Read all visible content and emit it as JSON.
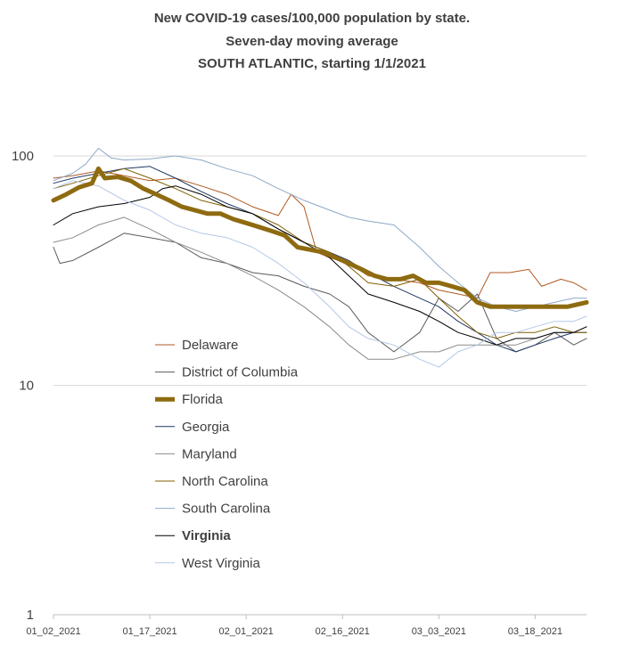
{
  "chart_data": {
    "type": "line",
    "title": [
      "New COVID-19 cases/100,000 population by state.",
      "Seven-day moving average",
      "SOUTH ATLANTIC, starting 1/1/2021"
    ],
    "xlabel": "",
    "ylabel": "",
    "y_scale": "log",
    "ylim": [
      1,
      100
    ],
    "y_ticks": [
      {
        "value": 100,
        "label": "100"
      },
      {
        "value": 10,
        "label": "10"
      },
      {
        "value": 1,
        "label": "1"
      }
    ],
    "x_start": "2021-01-02",
    "x_end": "2021-03-26",
    "x_ticks": [
      {
        "date": "2021-01-02",
        "label": "01_02_2021"
      },
      {
        "date": "2021-01-17",
        "label": "01_17_2021"
      },
      {
        "date": "2021-02-01",
        "label": "02_01_2021"
      },
      {
        "date": "2021-02-16",
        "label": "02_16_2021"
      },
      {
        "date": "2021-03-03",
        "label": "03_03_2021"
      },
      {
        "date": "2021-03-18",
        "label": "03_18_2021"
      }
    ],
    "gridlines": "horizontal",
    "legend_position": "inside-lower-left",
    "series": [
      {
        "name": "Delaware",
        "color": "#b05a22",
        "width": 1,
        "bold": false,
        "points": [
          [
            "2021-01-02",
            80
          ],
          [
            "2021-01-05",
            82
          ],
          [
            "2021-01-09",
            86
          ],
          [
            "2021-01-13",
            82
          ],
          [
            "2021-01-17",
            78
          ],
          [
            "2021-01-21",
            80
          ],
          [
            "2021-01-25",
            74
          ],
          [
            "2021-01-29",
            68
          ],
          [
            "2021-02-02",
            60
          ],
          [
            "2021-02-06",
            55
          ],
          [
            "2021-02-08",
            68
          ],
          [
            "2021-02-10",
            60
          ],
          [
            "2021-02-12",
            38
          ],
          [
            "2021-02-14",
            36
          ],
          [
            "2021-02-17",
            34
          ],
          [
            "2021-02-20",
            30
          ],
          [
            "2021-02-24",
            29
          ],
          [
            "2021-02-28",
            28
          ],
          [
            "2021-03-03",
            26
          ],
          [
            "2021-03-06",
            25
          ],
          [
            "2021-03-09",
            24
          ],
          [
            "2021-03-11",
            31
          ],
          [
            "2021-03-14",
            31
          ],
          [
            "2021-03-17",
            32
          ],
          [
            "2021-03-19",
            27
          ],
          [
            "2021-03-22",
            29
          ],
          [
            "2021-03-24",
            28
          ],
          [
            "2021-03-26",
            26
          ]
        ]
      },
      {
        "name": "District of Columbia",
        "color": "#5b5b5b",
        "width": 1,
        "bold": false,
        "points": [
          [
            "2021-01-02",
            40
          ],
          [
            "2021-01-03",
            34
          ],
          [
            "2021-01-05",
            35
          ],
          [
            "2021-01-09",
            40
          ],
          [
            "2021-01-13",
            46
          ],
          [
            "2021-01-17",
            44
          ],
          [
            "2021-01-21",
            42
          ],
          [
            "2021-01-25",
            36
          ],
          [
            "2021-01-29",
            34
          ],
          [
            "2021-02-02",
            31
          ],
          [
            "2021-02-06",
            30
          ],
          [
            "2021-02-10",
            27
          ],
          [
            "2021-02-14",
            25
          ],
          [
            "2021-02-17",
            22
          ],
          [
            "2021-02-20",
            17
          ],
          [
            "2021-02-24",
            14
          ],
          [
            "2021-02-28",
            17
          ],
          [
            "2021-03-03",
            24
          ],
          [
            "2021-03-06",
            21
          ],
          [
            "2021-03-09",
            25
          ],
          [
            "2021-03-12",
            16
          ],
          [
            "2021-03-15",
            14
          ],
          [
            "2021-03-18",
            15
          ],
          [
            "2021-03-21",
            17
          ],
          [
            "2021-03-24",
            15
          ],
          [
            "2021-03-26",
            16
          ]
        ]
      },
      {
        "name": "Florida",
        "color": "#8e6b10",
        "width": 5,
        "bold": false,
        "points": [
          [
            "2021-01-02",
            64
          ],
          [
            "2021-01-04",
            68
          ],
          [
            "2021-01-06",
            73
          ],
          [
            "2021-01-08",
            76
          ],
          [
            "2021-01-09",
            88
          ],
          [
            "2021-01-10",
            80
          ],
          [
            "2021-01-12",
            81
          ],
          [
            "2021-01-14",
            78
          ],
          [
            "2021-01-16",
            72
          ],
          [
            "2021-01-18",
            68
          ],
          [
            "2021-01-20",
            64
          ],
          [
            "2021-01-22",
            60
          ],
          [
            "2021-01-24",
            58
          ],
          [
            "2021-01-26",
            56
          ],
          [
            "2021-01-28",
            56
          ],
          [
            "2021-01-30",
            53
          ],
          [
            "2021-02-01",
            51
          ],
          [
            "2021-02-03",
            49
          ],
          [
            "2021-02-05",
            47
          ],
          [
            "2021-02-07",
            45
          ],
          [
            "2021-02-09",
            40
          ],
          [
            "2021-02-11",
            39
          ],
          [
            "2021-02-13",
            38
          ],
          [
            "2021-02-15",
            36
          ],
          [
            "2021-02-17",
            34
          ],
          [
            "2021-02-19",
            32
          ],
          [
            "2021-02-21",
            30
          ],
          [
            "2021-02-23",
            29
          ],
          [
            "2021-02-25",
            29
          ],
          [
            "2021-02-27",
            30
          ],
          [
            "2021-03-01",
            28
          ],
          [
            "2021-03-03",
            28
          ],
          [
            "2021-03-05",
            27
          ],
          [
            "2021-03-07",
            26
          ],
          [
            "2021-03-09",
            23
          ],
          [
            "2021-03-11",
            22
          ],
          [
            "2021-03-14",
            22
          ],
          [
            "2021-03-17",
            22
          ],
          [
            "2021-03-20",
            22
          ],
          [
            "2021-03-23",
            22
          ],
          [
            "2021-03-26",
            23
          ]
        ]
      },
      {
        "name": "Georgia",
        "color": "#1f3864",
        "width": 1,
        "bold": false,
        "points": [
          [
            "2021-01-02",
            76
          ],
          [
            "2021-01-05",
            80
          ],
          [
            "2021-01-09",
            84
          ],
          [
            "2021-01-13",
            88
          ],
          [
            "2021-01-17",
            90
          ],
          [
            "2021-01-21",
            80
          ],
          [
            "2021-01-25",
            70
          ],
          [
            "2021-01-29",
            62
          ],
          [
            "2021-02-02",
            56
          ],
          [
            "2021-02-06",
            48
          ],
          [
            "2021-02-10",
            42
          ],
          [
            "2021-02-14",
            38
          ],
          [
            "2021-02-17",
            35
          ],
          [
            "2021-02-20",
            31
          ],
          [
            "2021-02-24",
            27
          ],
          [
            "2021-02-28",
            24
          ],
          [
            "2021-03-03",
            22
          ],
          [
            "2021-03-06",
            19
          ],
          [
            "2021-03-09",
            17
          ],
          [
            "2021-03-12",
            15
          ],
          [
            "2021-03-15",
            14
          ],
          [
            "2021-03-18",
            15
          ],
          [
            "2021-03-21",
            16
          ],
          [
            "2021-03-24",
            17
          ],
          [
            "2021-03-26",
            17
          ]
        ]
      },
      {
        "name": "Maryland",
        "color": "#8c8c8c",
        "width": 1,
        "bold": false,
        "points": [
          [
            "2021-01-02",
            42
          ],
          [
            "2021-01-05",
            44
          ],
          [
            "2021-01-09",
            50
          ],
          [
            "2021-01-13",
            54
          ],
          [
            "2021-01-17",
            48
          ],
          [
            "2021-01-21",
            42
          ],
          [
            "2021-01-25",
            38
          ],
          [
            "2021-01-29",
            34
          ],
          [
            "2021-02-02",
            30
          ],
          [
            "2021-02-06",
            26
          ],
          [
            "2021-02-10",
            22
          ],
          [
            "2021-02-14",
            18
          ],
          [
            "2021-02-17",
            15
          ],
          [
            "2021-02-20",
            13
          ],
          [
            "2021-02-24",
            13
          ],
          [
            "2021-02-28",
            14
          ],
          [
            "2021-03-03",
            14
          ],
          [
            "2021-03-06",
            15
          ],
          [
            "2021-03-09",
            15
          ],
          [
            "2021-03-12",
            15
          ],
          [
            "2021-03-15",
            15
          ],
          [
            "2021-03-18",
            16
          ],
          [
            "2021-03-21",
            17
          ],
          [
            "2021-03-24",
            17
          ],
          [
            "2021-03-26",
            18
          ]
        ]
      },
      {
        "name": "North Carolina",
        "color": "#7f6000",
        "width": 1,
        "bold": false,
        "points": [
          [
            "2021-01-02",
            72
          ],
          [
            "2021-01-05",
            76
          ],
          [
            "2021-01-09",
            82
          ],
          [
            "2021-01-13",
            88
          ],
          [
            "2021-01-17",
            80
          ],
          [
            "2021-01-21",
            72
          ],
          [
            "2021-01-25",
            64
          ],
          [
            "2021-01-29",
            60
          ],
          [
            "2021-02-02",
            56
          ],
          [
            "2021-02-06",
            50
          ],
          [
            "2021-02-10",
            42
          ],
          [
            "2021-02-14",
            38
          ],
          [
            "2021-02-17",
            33
          ],
          [
            "2021-02-20",
            28
          ],
          [
            "2021-02-24",
            27
          ],
          [
            "2021-02-28",
            29
          ],
          [
            "2021-03-03",
            24
          ],
          [
            "2021-03-06",
            20
          ],
          [
            "2021-03-09",
            17
          ],
          [
            "2021-03-12",
            16
          ],
          [
            "2021-03-15",
            17
          ],
          [
            "2021-03-18",
            17
          ],
          [
            "2021-03-21",
            18
          ],
          [
            "2021-03-24",
            17
          ],
          [
            "2021-03-26",
            17
          ]
        ]
      },
      {
        "name": "South Carolina",
        "color": "#8ea9c8",
        "width": 1,
        "bold": false,
        "points": [
          [
            "2021-01-02",
            78
          ],
          [
            "2021-01-05",
            84
          ],
          [
            "2021-01-07",
            92
          ],
          [
            "2021-01-09",
            108
          ],
          [
            "2021-01-11",
            98
          ],
          [
            "2021-01-13",
            96
          ],
          [
            "2021-01-17",
            97
          ],
          [
            "2021-01-21",
            100
          ],
          [
            "2021-01-25",
            96
          ],
          [
            "2021-01-29",
            88
          ],
          [
            "2021-02-02",
            82
          ],
          [
            "2021-02-06",
            72
          ],
          [
            "2021-02-10",
            64
          ],
          [
            "2021-02-14",
            58
          ],
          [
            "2021-02-17",
            54
          ],
          [
            "2021-02-20",
            52
          ],
          [
            "2021-02-24",
            50
          ],
          [
            "2021-02-28",
            40
          ],
          [
            "2021-03-03",
            33
          ],
          [
            "2021-03-06",
            28
          ],
          [
            "2021-03-09",
            24
          ],
          [
            "2021-03-12",
            22
          ],
          [
            "2021-03-15",
            21
          ],
          [
            "2021-03-18",
            22
          ],
          [
            "2021-03-21",
            23
          ],
          [
            "2021-03-24",
            24
          ],
          [
            "2021-03-26",
            24
          ]
        ]
      },
      {
        "name": "Virginia",
        "color": "#000000",
        "width": 1,
        "bold": true,
        "points": [
          [
            "2021-01-02",
            50
          ],
          [
            "2021-01-05",
            56
          ],
          [
            "2021-01-09",
            60
          ],
          [
            "2021-01-13",
            62
          ],
          [
            "2021-01-17",
            66
          ],
          [
            "2021-01-19",
            72
          ],
          [
            "2021-01-21",
            74
          ],
          [
            "2021-01-25",
            68
          ],
          [
            "2021-01-29",
            60
          ],
          [
            "2021-02-02",
            56
          ],
          [
            "2021-02-06",
            48
          ],
          [
            "2021-02-10",
            42
          ],
          [
            "2021-02-14",
            36
          ],
          [
            "2021-02-17",
            30
          ],
          [
            "2021-02-20",
            25
          ],
          [
            "2021-02-24",
            23
          ],
          [
            "2021-02-28",
            21
          ],
          [
            "2021-03-03",
            19
          ],
          [
            "2021-03-06",
            17
          ],
          [
            "2021-03-09",
            16
          ],
          [
            "2021-03-12",
            15
          ],
          [
            "2021-03-15",
            16
          ],
          [
            "2021-03-18",
            16
          ],
          [
            "2021-03-21",
            17
          ],
          [
            "2021-03-24",
            17
          ],
          [
            "2021-03-26",
            18
          ]
        ]
      },
      {
        "name": "West Virginia",
        "color": "#b4c7e7",
        "width": 1,
        "bold": false,
        "points": [
          [
            "2021-01-02",
            72
          ],
          [
            "2021-01-05",
            78
          ],
          [
            "2021-01-09",
            74
          ],
          [
            "2021-01-13",
            64
          ],
          [
            "2021-01-17",
            58
          ],
          [
            "2021-01-21",
            50
          ],
          [
            "2021-01-25",
            46
          ],
          [
            "2021-01-29",
            44
          ],
          [
            "2021-02-02",
            40
          ],
          [
            "2021-02-06",
            34
          ],
          [
            "2021-02-10",
            28
          ],
          [
            "2021-02-14",
            22
          ],
          [
            "2021-02-17",
            18
          ],
          [
            "2021-02-20",
            16
          ],
          [
            "2021-02-24",
            15
          ],
          [
            "2021-02-28",
            13
          ],
          [
            "2021-03-03",
            12
          ],
          [
            "2021-03-06",
            14
          ],
          [
            "2021-03-09",
            15
          ],
          [
            "2021-03-12",
            17
          ],
          [
            "2021-03-15",
            17
          ],
          [
            "2021-03-18",
            18
          ],
          [
            "2021-03-21",
            19
          ],
          [
            "2021-03-24",
            19
          ],
          [
            "2021-03-26",
            20
          ]
        ]
      }
    ]
  }
}
